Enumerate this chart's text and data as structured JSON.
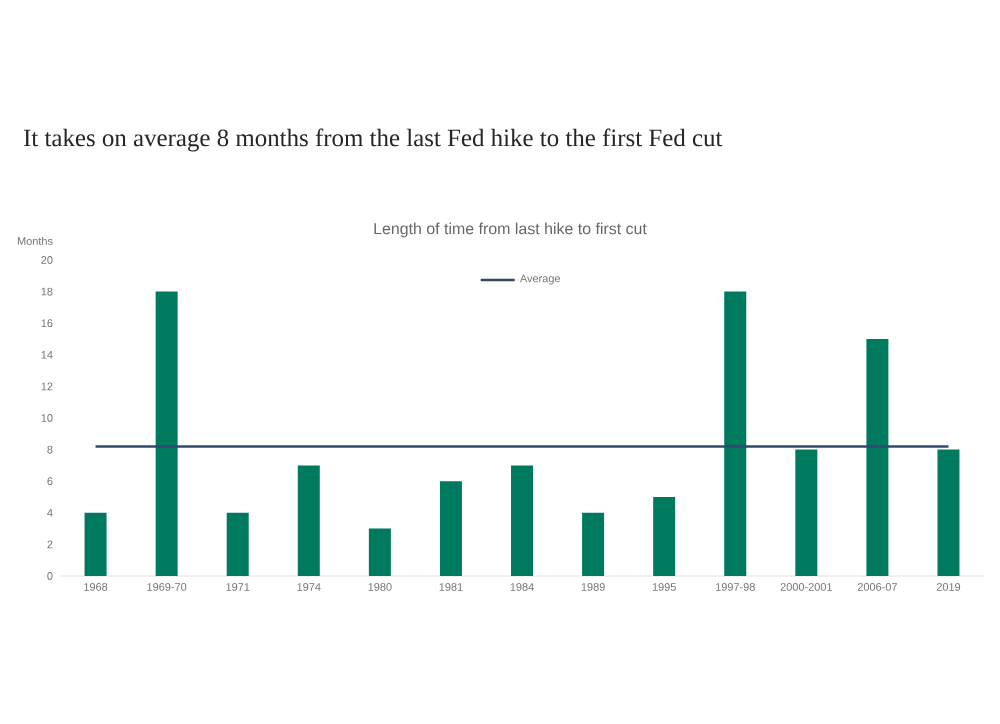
{
  "chart_data": {
    "type": "bar",
    "title": "It takes on average 8 months from the last Fed hike to the first Fed cut",
    "subtitle": "Length of time from last hike to first cut",
    "ylabel": "Months",
    "categories": [
      "1968",
      "1969-70",
      "1971",
      "1974",
      "1980",
      "1981",
      "1984",
      "1989",
      "1995",
      "1997-98",
      "2000-2001",
      "2006-07",
      "2019"
    ],
    "series": [
      {
        "color": "#007a5e",
        "values": [
          4,
          18,
          4,
          7,
          3,
          6,
          7,
          4,
          5,
          18,
          8,
          15,
          8
        ]
      },
      {
        "type": "line",
        "name": "Average",
        "color": "#2f4a6a",
        "values": [
          8.2,
          8.2,
          8.2,
          8.2,
          8.2,
          8.2,
          8.2,
          8.2,
          8.2,
          8.2,
          8.2,
          8.2,
          8.2
        ]
      }
    ],
    "ylim": [
      0,
      20
    ],
    "yticks": [
      0,
      2,
      4,
      6,
      8,
      10,
      12,
      14,
      16,
      18,
      20
    ],
    "grid": false,
    "legend": "top"
  }
}
